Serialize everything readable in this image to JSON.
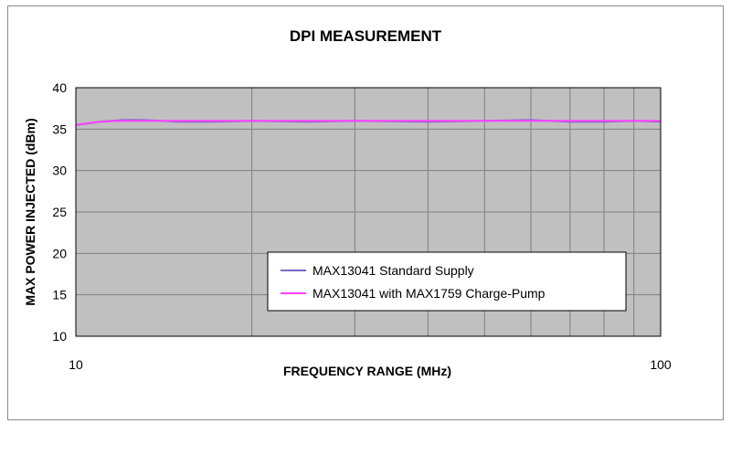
{
  "chart_data": {
    "type": "line",
    "title": "DPI MEASUREMENT",
    "xlabel": "FREQUENCY RANGE (MHz)",
    "ylabel": "MAX POWER INJECTED (dBm)",
    "x_scale": "log",
    "xlim": [
      10,
      100
    ],
    "ylim": [
      10,
      40
    ],
    "x_tick_labels": [
      "10",
      "100"
    ],
    "y_ticks": [
      10,
      15,
      20,
      25,
      30,
      35,
      40
    ],
    "grid": true,
    "legend_position": "lower-right",
    "x": [
      10,
      11,
      12,
      13,
      14,
      15,
      17,
      20,
      25,
      30,
      40,
      50,
      60,
      70,
      80,
      90,
      100
    ],
    "series": [
      {
        "name": "MAX13041 Standard Supply",
        "color": "#7b68c8",
        "values": [
          35.5,
          35.9,
          36.1,
          36.1,
          36.0,
          35.9,
          35.9,
          36.0,
          35.9,
          36.0,
          35.9,
          36.0,
          36.1,
          35.9,
          35.9,
          36.0,
          35.9
        ]
      },
      {
        "name": "MAX13041 with MAX1759 Charge-Pump",
        "color": "#ff40ff",
        "values": [
          35.5,
          35.9,
          36.0,
          36.0,
          36.0,
          36.0,
          36.0,
          36.0,
          36.0,
          36.0,
          36.0,
          36.0,
          36.0,
          36.0,
          36.0,
          36.0,
          36.0
        ]
      }
    ]
  },
  "colors": {
    "plot_background": "#c0c0c0",
    "grid": "#7f7f7f",
    "axis": "#000000"
  }
}
